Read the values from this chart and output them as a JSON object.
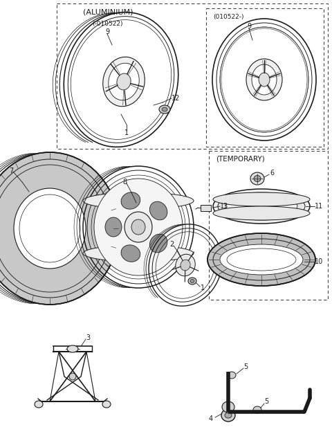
{
  "bg_color": "#ffffff",
  "line_color": "#1a1a1a",
  "parts": {
    "aluminium_box_label": "(ALUMINIUM)",
    "aluminium_sub1_label": "(-010522)",
    "aluminium_sub2_label": "(010522-)",
    "temporary_box_label": "(TEMPORARY)"
  }
}
